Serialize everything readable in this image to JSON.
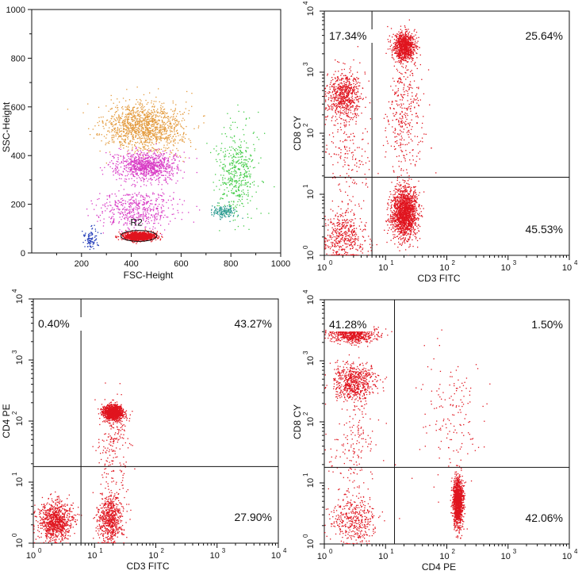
{
  "colors": {
    "red": "#e0141e",
    "orange": "#e39a3c",
    "magenta": "#d839c4",
    "teal": "#2a9a90",
    "green": "#43cc47",
    "blue": "#203ab8",
    "frame": "#111111"
  },
  "chart_data": [
    {
      "type": "scatter",
      "title": "",
      "xlabel": "FSC-Height",
      "ylabel": "SSC-Height",
      "xlim": [
        0,
        1000
      ],
      "ylim": [
        0,
        1000
      ],
      "xscale": "linear",
      "yscale": "linear",
      "xticks": [
        200,
        400,
        600,
        800,
        1000
      ],
      "xtick_labels": [
        "200",
        "400",
        "600",
        "800",
        "1000"
      ],
      "yticks": [
        0,
        200,
        400,
        600,
        800,
        1000
      ],
      "ytick_labels": [
        "0",
        "200",
        "400",
        "600",
        "800",
        "1000"
      ],
      "gate": {
        "label": "R2",
        "shape": "ellipse",
        "center": [
          430,
          70
        ],
        "radii": [
          120,
          45
        ]
      },
      "series": [
        {
          "color": "orange",
          "count": 1300,
          "center": [
            450,
            520
          ],
          "spread": [
            140,
            90
          ]
        },
        {
          "color": "magenta",
          "count": 900,
          "center": [
            460,
            360
          ],
          "spread": [
            110,
            55
          ]
        },
        {
          "color": "magenta",
          "count": 500,
          "center": [
            420,
            180
          ],
          "spread": [
            150,
            70
          ]
        },
        {
          "color": "green",
          "count": 450,
          "center": [
            820,
            330
          ],
          "spread": [
            70,
            160
          ]
        },
        {
          "color": "teal",
          "count": 150,
          "center": [
            770,
            170
          ],
          "spread": [
            40,
            25
          ]
        },
        {
          "color": "blue",
          "count": 90,
          "center": [
            240,
            60
          ],
          "spread": [
            30,
            40
          ]
        },
        {
          "color": "red",
          "count": 1400,
          "center": [
            430,
            70
          ],
          "spread": [
            55,
            15
          ]
        }
      ]
    },
    {
      "type": "scatter",
      "xlabel": "CD3 FITC",
      "ylabel": "CD8 CY",
      "xlim": [
        1,
        10000
      ],
      "ylim": [
        1,
        10000
      ],
      "xscale": "log",
      "yscale": "log",
      "ticks": [
        {
          "base": "10",
          "exp": "0"
        },
        {
          "base": "10",
          "exp": "1"
        },
        {
          "base": "10",
          "exp": "2"
        },
        {
          "base": "10",
          "exp": "3"
        },
        {
          "base": "10",
          "exp": "4"
        }
      ],
      "quadrant_lines": {
        "x": 6,
        "y": 19
      },
      "quadrant_labels": {
        "upper_left": "17.34%",
        "upper_right": "25.64%",
        "lower_left": "",
        "lower_right": "45.53%"
      },
      "clusters": [
        {
          "center": [
            20,
            2700
          ],
          "spread": [
            0.09,
            0.12
          ],
          "count": 900
        },
        {
          "center": [
            2,
            420
          ],
          "spread": [
            0.14,
            0.2
          ],
          "count": 650
        },
        {
          "center": [
            20,
            5
          ],
          "spread": [
            0.1,
            0.2
          ],
          "count": 1600
        },
        {
          "center": [
            2,
            2
          ],
          "spread": [
            0.18,
            0.22
          ],
          "count": 450
        },
        {
          "center": [
            20,
            200
          ],
          "spread": [
            0.15,
            0.55
          ],
          "count": 350
        },
        {
          "center": [
            2.5,
            40
          ],
          "spread": [
            0.2,
            0.35
          ],
          "count": 150
        }
      ]
    },
    {
      "type": "scatter",
      "xlabel": "CD3 FITC",
      "ylabel": "CD4 PE",
      "xlim": [
        1,
        10000
      ],
      "ylim": [
        1,
        10000
      ],
      "xscale": "log",
      "yscale": "log",
      "ticks": [
        {
          "base": "10",
          "exp": "0"
        },
        {
          "base": "10",
          "exp": "1"
        },
        {
          "base": "10",
          "exp": "2"
        },
        {
          "base": "10",
          "exp": "3"
        },
        {
          "base": "10",
          "exp": "4"
        }
      ],
      "quadrant_lines": {
        "x": 6,
        "y": 18
      },
      "quadrant_labels": {
        "upper_left": "0.40%",
        "upper_right": "43.27%",
        "lower_left": "",
        "lower_right": "27.90%"
      },
      "clusters": [
        {
          "center": [
            20,
            140
          ],
          "spread": [
            0.08,
            0.06
          ],
          "count": 1200
        },
        {
          "center": [
            2.3,
            2.3
          ],
          "spread": [
            0.14,
            0.16
          ],
          "count": 900
        },
        {
          "center": [
            18,
            2.5
          ],
          "spread": [
            0.1,
            0.2
          ],
          "count": 650
        },
        {
          "center": [
            20,
            40
          ],
          "spread": [
            0.14,
            0.4
          ],
          "count": 200
        }
      ]
    },
    {
      "type": "scatter",
      "xlabel": "CD4 PE",
      "ylabel": "CD8 CY",
      "xlim": [
        1,
        10000
      ],
      "ylim": [
        1,
        10000
      ],
      "xscale": "log",
      "yscale": "log",
      "ticks": [
        {
          "base": "10",
          "exp": "0"
        },
        {
          "base": "10",
          "exp": "1"
        },
        {
          "base": "10",
          "exp": "2"
        },
        {
          "base": "10",
          "exp": "3"
        },
        {
          "base": "10",
          "exp": "4"
        }
      ],
      "quadrant_lines": {
        "x": 14,
        "y": 18
      },
      "quadrant_labels": {
        "upper_left": "41.28%",
        "upper_right": "1.50%",
        "lower_left": "",
        "lower_right": "42.06%"
      },
      "clusters": [
        {
          "center": [
            3,
            2800
          ],
          "spread": [
            0.2,
            0.07
          ],
          "count": 700
        },
        {
          "center": [
            3,
            450
          ],
          "spread": [
            0.18,
            0.16
          ],
          "count": 650
        },
        {
          "center": [
            150,
            5
          ],
          "spread": [
            0.04,
            0.2
          ],
          "count": 1300
        },
        {
          "center": [
            3,
            2.5
          ],
          "spread": [
            0.18,
            0.2
          ],
          "count": 400
        },
        {
          "center": [
            120,
            120
          ],
          "spread": [
            0.25,
            0.5
          ],
          "count": 150
        },
        {
          "center": [
            3,
            40
          ],
          "spread": [
            0.2,
            0.35
          ],
          "count": 150
        }
      ]
    }
  ]
}
